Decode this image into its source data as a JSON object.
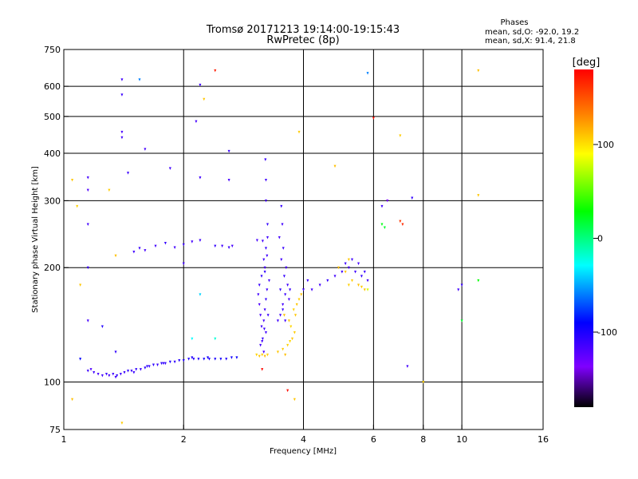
{
  "chart_data": {
    "type": "scatter",
    "title": "Tromsø 20171213 19:14:00-19:15:43",
    "subtitle": "RwPretec (8p)",
    "stats": {
      "heading": "Phases",
      "line1": "mean, sd,O: -92.0, 19.2",
      "line2": "mean, sd,X:  91.4, 21.8"
    },
    "xlabel": "Frequency [MHz]",
    "ylabel": "Stationary phase Virtual Height [km]",
    "x_scale": "log",
    "y_scale": "log",
    "xlim": [
      1,
      16
    ],
    "ylim": [
      75,
      750
    ],
    "x_ticks": [
      {
        "v": 1,
        "label": "1"
      },
      {
        "v": 2,
        "label": "2"
      },
      {
        "v": 4,
        "label": "4"
      },
      {
        "v": 6,
        "label": "6"
      },
      {
        "v": 8,
        "label": "8"
      },
      {
        "v": 10,
        "label": "10"
      },
      {
        "v": 16,
        "label": "16"
      }
    ],
    "x_grid": [
      2,
      4,
      6,
      8,
      10
    ],
    "y_ticks": [
      {
        "v": 75,
        "label": "75"
      },
      {
        "v": 100,
        "label": "100"
      },
      {
        "v": 200,
        "label": "200"
      },
      {
        "v": 300,
        "label": "300"
      },
      {
        "v": 400,
        "label": "400"
      },
      {
        "v": 500,
        "label": "500"
      },
      {
        "v": 600,
        "label": "600"
      },
      {
        "v": 750,
        "label": "750"
      }
    ],
    "y_grid": [
      100,
      200,
      300,
      400,
      500,
      600
    ],
    "colorbar": {
      "label": "[deg]",
      "range": [
        -180,
        180
      ],
      "ticks": [
        {
          "v": 100,
          "label": "100"
        },
        {
          "v": 0,
          "label": "0"
        },
        {
          "v": -100,
          "label": "-100"
        }
      ]
    },
    "points_note": "phase in degrees",
    "points": [
      [
        1.19,
        106,
        -110
      ],
      [
        1.22,
        105,
        -112
      ],
      [
        1.25,
        104,
        -110
      ],
      [
        1.28,
        105,
        -108
      ],
      [
        1.3,
        104,
        -112
      ],
      [
        1.33,
        105,
        -110
      ],
      [
        1.36,
        104,
        -105
      ],
      [
        1.39,
        105,
        -110
      ],
      [
        1.42,
        106,
        -108
      ],
      [
        1.45,
        107,
        -106
      ],
      [
        1.48,
        107,
        -110
      ],
      [
        1.52,
        108,
        -105
      ],
      [
        1.56,
        108,
        -108
      ],
      [
        1.6,
        109,
        -104
      ],
      [
        1.64,
        110,
        -106
      ],
      [
        1.68,
        111,
        -103
      ],
      [
        1.72,
        111,
        -108
      ],
      [
        1.76,
        112,
        -104
      ],
      [
        1.8,
        112,
        -106
      ],
      [
        1.85,
        113,
        -100
      ],
      [
        1.9,
        113,
        -104
      ],
      [
        1.95,
        114,
        -102
      ],
      [
        2.0,
        114,
        -100
      ],
      [
        2.06,
        115,
        -98
      ],
      [
        2.12,
        115,
        -102
      ],
      [
        2.18,
        115,
        -100
      ],
      [
        2.25,
        115,
        -96
      ],
      [
        2.32,
        115,
        -100
      ],
      [
        2.4,
        115,
        -98
      ],
      [
        2.48,
        115,
        -95
      ],
      [
        2.56,
        115,
        -100
      ],
      [
        2.64,
        116,
        -96
      ],
      [
        2.72,
        116,
        -92
      ],
      [
        1.15,
        107,
        -110
      ],
      [
        1.17,
        108,
        -115
      ],
      [
        1.35,
        103,
        -112
      ],
      [
        1.5,
        106,
        -108
      ],
      [
        1.62,
        110,
        -104
      ],
      [
        1.78,
        112,
        -106
      ],
      [
        2.1,
        116,
        -100
      ],
      [
        2.3,
        116,
        -97
      ],
      [
        3.05,
        118,
        105
      ],
      [
        3.1,
        117,
        110
      ],
      [
        3.15,
        118,
        108
      ],
      [
        3.2,
        117,
        112
      ],
      [
        3.25,
        118,
        106
      ],
      [
        3.08,
        170,
        -110
      ],
      [
        3.1,
        160,
        -115
      ],
      [
        3.12,
        150,
        -112
      ],
      [
        3.14,
        140,
        -110
      ],
      [
        3.16,
        130,
        -108
      ],
      [
        3.18,
        145,
        -112
      ],
      [
        3.2,
        155,
        -110
      ],
      [
        3.22,
        165,
        -106
      ],
      [
        3.24,
        175,
        -110
      ],
      [
        3.1,
        180,
        -108
      ],
      [
        3.14,
        190,
        -105
      ],
      [
        3.2,
        200,
        -112
      ],
      [
        3.18,
        210,
        -110
      ],
      [
        3.22,
        225,
        -106
      ],
      [
        3.16,
        235,
        -112
      ],
      [
        3.12,
        125,
        -110
      ],
      [
        3.18,
        120,
        -114
      ],
      [
        3.22,
        135,
        -110
      ],
      [
        3.26,
        150,
        -108
      ],
      [
        3.28,
        185,
        -112
      ],
      [
        3.25,
        240,
        -110
      ],
      [
        3.25,
        260,
        -106
      ],
      [
        3.22,
        300,
        -112
      ],
      [
        3.22,
        340,
        -110
      ],
      [
        3.21,
        385,
        -108
      ],
      [
        3.15,
        128,
        -110
      ],
      [
        3.19,
        138,
        -108
      ],
      [
        3.06,
        236,
        -112
      ],
      [
        3.24,
        215,
        -110
      ],
      [
        3.2,
        195,
        -105
      ],
      [
        3.5,
        150,
        -110
      ],
      [
        3.55,
        160,
        -112
      ],
      [
        3.6,
        170,
        -108
      ],
      [
        3.65,
        180,
        -110
      ],
      [
        3.58,
        190,
        -106
      ],
      [
        3.62,
        200,
        -112
      ],
      [
        3.52,
        210,
        -110
      ],
      [
        3.56,
        225,
        -108
      ],
      [
        3.48,
        240,
        -112
      ],
      [
        3.54,
        260,
        -110
      ],
      [
        3.52,
        290,
        -106
      ],
      [
        3.55,
        155,
        -108
      ],
      [
        3.6,
        145,
        -110
      ],
      [
        3.68,
        165,
        -112
      ],
      [
        3.7,
        175,
        -108
      ],
      [
        3.45,
        145,
        -110
      ],
      [
        3.5,
        175,
        -106
      ],
      [
        3.45,
        120,
        110
      ],
      [
        3.55,
        122,
        108
      ],
      [
        3.65,
        125,
        106
      ],
      [
        3.75,
        130,
        110
      ],
      [
        3.6,
        118,
        112
      ],
      [
        3.7,
        128,
        104
      ],
      [
        3.8,
        135,
        108
      ],
      [
        3.58,
        150,
        112
      ],
      [
        3.68,
        145,
        110
      ],
      [
        3.78,
        155,
        106
      ],
      [
        3.85,
        160,
        110
      ],
      [
        3.9,
        165,
        108
      ],
      [
        3.95,
        170,
        112
      ],
      [
        3.72,
        140,
        104
      ],
      [
        3.82,
        150,
        110
      ],
      [
        4.0,
        175,
        -110
      ],
      [
        4.1,
        185,
        -108
      ],
      [
        4.2,
        175,
        -112
      ],
      [
        4.4,
        180,
        -110
      ],
      [
        4.6,
        185,
        -106
      ],
      [
        4.8,
        190,
        -110
      ],
      [
        5.0,
        195,
        -108
      ],
      [
        5.2,
        200,
        -112
      ],
      [
        5.4,
        195,
        -110
      ],
      [
        5.6,
        190,
        -106
      ],
      [
        5.8,
        185,
        -110
      ],
      [
        5.7,
        195,
        -108
      ],
      [
        5.5,
        205,
        -112
      ],
      [
        5.3,
        210,
        -110
      ],
      [
        5.1,
        205,
        -108
      ],
      [
        4.9,
        200,
        112
      ],
      [
        5.1,
        195,
        110
      ],
      [
        5.3,
        185,
        108
      ],
      [
        5.5,
        180,
        112
      ],
      [
        5.7,
        175,
        110
      ],
      [
        5.2,
        180,
        106
      ],
      [
        5.6,
        178,
        108
      ],
      [
        1.15,
        345,
        -112
      ],
      [
        1.15,
        320,
        -115
      ],
      [
        1.15,
        260,
        -110
      ],
      [
        1.15,
        200,
        -108
      ],
      [
        1.15,
        145,
        -112
      ],
      [
        1.4,
        625,
        -110
      ],
      [
        1.4,
        570,
        -108
      ],
      [
        1.4,
        455,
        -112
      ],
      [
        1.4,
        440,
        -110
      ],
      [
        1.45,
        355,
        -108
      ],
      [
        1.6,
        410,
        -112
      ],
      [
        1.85,
        365,
        -110
      ],
      [
        2.2,
        605,
        -108
      ],
      [
        2.15,
        485,
        -112
      ],
      [
        2.2,
        345,
        -110
      ],
      [
        2.6,
        405,
        -108
      ],
      [
        2.6,
        340,
        -112
      ],
      [
        6.3,
        290,
        -110
      ],
      [
        1.5,
        220,
        -110
      ],
      [
        1.55,
        225,
        -108
      ],
      [
        1.6,
        222,
        -112
      ],
      [
        1.7,
        228,
        -110
      ],
      [
        1.8,
        232,
        -106
      ],
      [
        1.9,
        226,
        -110
      ],
      [
        2.0,
        230,
        -108
      ],
      [
        2.1,
        234,
        -112
      ],
      [
        2.2,
        236,
        -110
      ],
      [
        2.4,
        228,
        -106
      ],
      [
        2.5,
        228,
        -110
      ],
      [
        2.6,
        226,
        -108
      ],
      [
        2.65,
        228,
        -112
      ],
      [
        1.05,
        340,
        110
      ],
      [
        1.08,
        290,
        106
      ],
      [
        1.1,
        180,
        110
      ],
      [
        1.3,
        320,
        108
      ],
      [
        1.35,
        215,
        112
      ],
      [
        2.25,
        555,
        110
      ],
      [
        3.9,
        455,
        108
      ],
      [
        4.8,
        370,
        112
      ],
      [
        5.2,
        210,
        110
      ],
      [
        7.0,
        445,
        108
      ],
      [
        11.0,
        660,
        112
      ],
      [
        11.0,
        310,
        110
      ],
      [
        1.05,
        90,
        112
      ],
      [
        1.4,
        78,
        108
      ],
      [
        3.8,
        90,
        110
      ],
      [
        8.0,
        100,
        106
      ],
      [
        6.3,
        260,
        25
      ],
      [
        6.4,
        255,
        20
      ],
      [
        2.4,
        130,
        -20
      ],
      [
        2.2,
        170,
        -40
      ],
      [
        2.1,
        130,
        -30
      ],
      [
        5.8,
        175,
        80
      ],
      [
        2.4,
        660,
        170
      ],
      [
        6.0,
        495,
        175
      ],
      [
        7.0,
        265,
        160
      ],
      [
        7.1,
        260,
        165
      ],
      [
        3.65,
        95,
        175
      ],
      [
        3.15,
        108,
        178
      ],
      [
        1.1,
        115,
        -90
      ],
      [
        1.25,
        140,
        -100
      ],
      [
        1.35,
        120,
        -105
      ],
      [
        2.0,
        205,
        -110
      ],
      [
        7.5,
        305,
        -105
      ],
      [
        9.8,
        175,
        -110
      ],
      [
        10.0,
        180,
        -108
      ],
      [
        10.0,
        145,
        20
      ],
      [
        11.0,
        185,
        30
      ],
      [
        5.8,
        650,
        -60
      ],
      [
        7.3,
        110,
        -110
      ],
      [
        6.5,
        300,
        -130
      ],
      [
        1.55,
        625,
        -60
      ]
    ]
  }
}
